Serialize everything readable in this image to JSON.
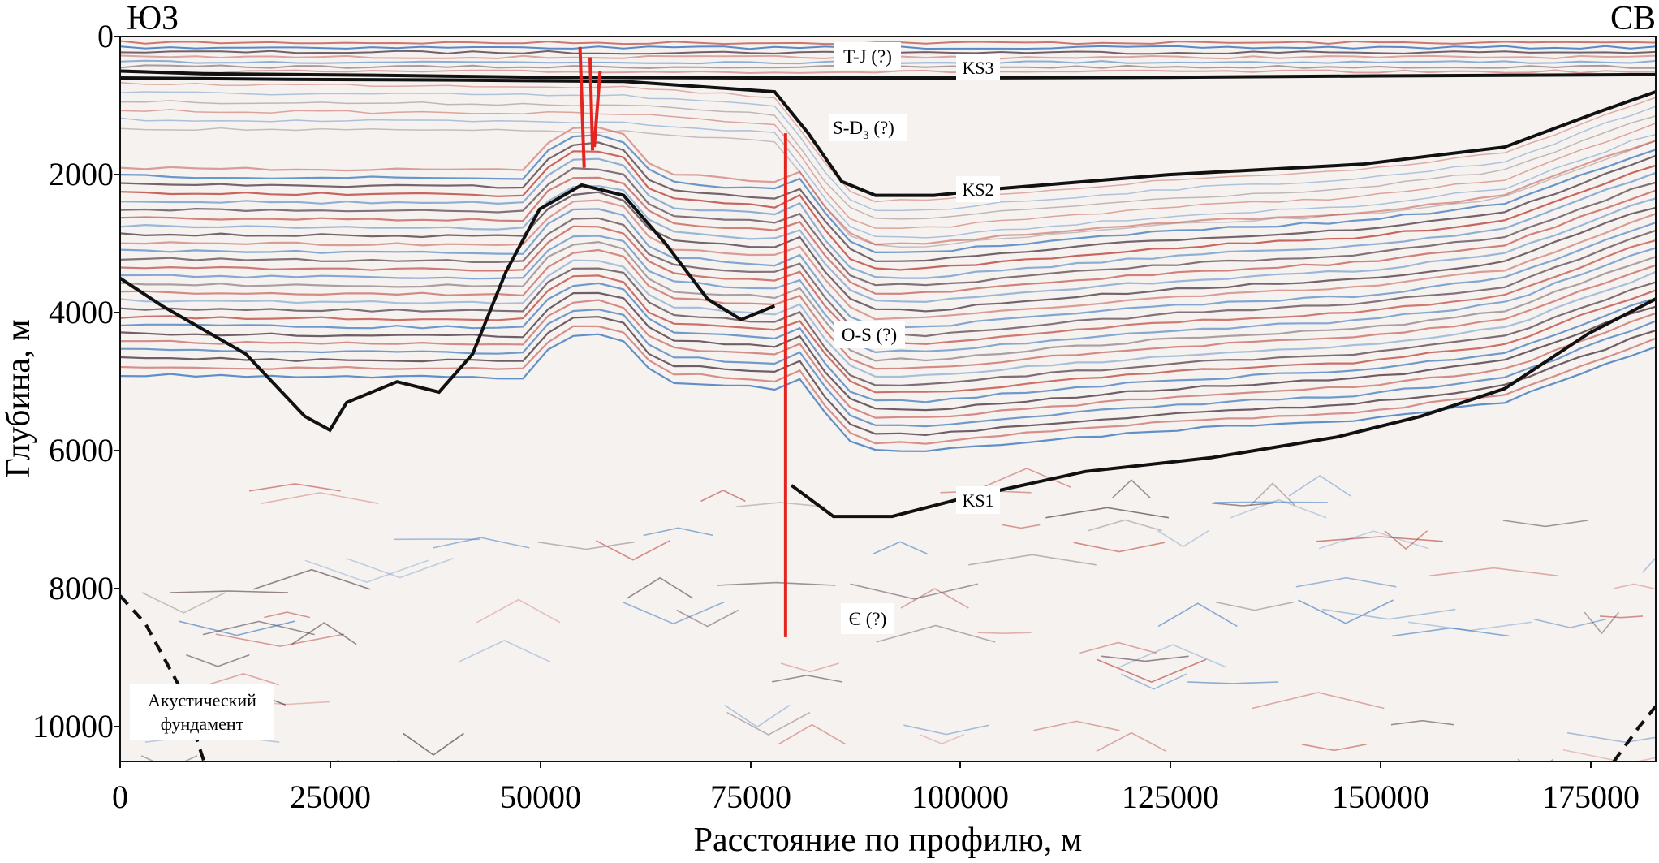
{
  "corners": {
    "left": "ЮЗ",
    "right": "СВ"
  },
  "axes": {
    "x_label": "Расстояние по профилю, м",
    "y_label": "Глубина, м",
    "x_range": [
      0,
      183000
    ],
    "y_range": [
      0,
      10500
    ],
    "x_ticks": [
      "0",
      "25000",
      "50000",
      "75000",
      "100000",
      "125000",
      "150000",
      "175000"
    ],
    "y_ticks": [
      "0",
      "2000",
      "4000",
      "6000",
      "8000",
      "10000"
    ]
  },
  "horizon_labels": {
    "tj": "T-J (?)",
    "ks3": "KS3",
    "sd_main": "S-D",
    "sd_sub": "3",
    "sd_suffix": " (?)",
    "ks2": "KS2",
    "os": "O-S (?)",
    "ks1": "KS1",
    "cambrian": "Є (?)"
  },
  "basement_label": {
    "line1": "Акустический",
    "line2": "фундамент"
  },
  "colors": {
    "horizon": "#111111",
    "fault": "#e52420",
    "reflector_red": "#b5322a",
    "reflector_blue": "#2f6fb8",
    "reflector_dark": "#3a2430"
  },
  "horizons": {
    "ks3": [
      [
        0,
        500
      ],
      [
        10000,
        540
      ],
      [
        30000,
        560
      ],
      [
        50000,
        590
      ],
      [
        75000,
        600
      ],
      [
        100000,
        600
      ],
      [
        125000,
        590
      ],
      [
        150000,
        570
      ],
      [
        183000,
        550
      ]
    ],
    "ks2": [
      [
        0,
        600
      ],
      [
        20000,
        620
      ],
      [
        40000,
        630
      ],
      [
        60000,
        650
      ],
      [
        78000,
        800
      ],
      [
        82000,
        1400
      ],
      [
        86000,
        2100
      ],
      [
        90000,
        2300
      ],
      [
        97000,
        2300
      ],
      [
        105000,
        2200
      ],
      [
        125000,
        2000
      ],
      [
        148000,
        1850
      ],
      [
        165000,
        1600
      ],
      [
        176000,
        1100
      ],
      [
        183000,
        800
      ]
    ],
    "ks1_left": [
      [
        0,
        3500
      ],
      [
        5000,
        3900
      ],
      [
        15000,
        4600
      ],
      [
        22000,
        5500
      ],
      [
        25000,
        5700
      ],
      [
        27000,
        5300
      ],
      [
        33000,
        5000
      ],
      [
        38000,
        5150
      ],
      [
        42000,
        4600
      ],
      [
        46000,
        3400
      ],
      [
        50000,
        2500
      ],
      [
        55000,
        2150
      ],
      [
        60000,
        2300
      ],
      [
        65000,
        3000
      ],
      [
        70000,
        3800
      ],
      [
        74000,
        4100
      ],
      [
        78000,
        3900
      ]
    ],
    "ks1_right": [
      [
        80000,
        6500
      ],
      [
        85000,
        6950
      ],
      [
        92000,
        6950
      ],
      [
        100000,
        6700
      ],
      [
        115000,
        6300
      ],
      [
        130000,
        6100
      ],
      [
        145000,
        5800
      ],
      [
        155000,
        5500
      ],
      [
        165000,
        5100
      ],
      [
        175000,
        4300
      ],
      [
        183000,
        3800
      ]
    ],
    "basement_left": [
      [
        0,
        8100
      ],
      [
        3000,
        8500
      ],
      [
        7000,
        9400
      ],
      [
        10000,
        10500
      ]
    ],
    "basement_right": [
      [
        178000,
        10500
      ],
      [
        181000,
        10000
      ],
      [
        183000,
        9700
      ]
    ]
  },
  "faults": [
    [
      [
        54800,
        150
      ],
      [
        55300,
        1900
      ]
    ],
    [
      [
        56000,
        300
      ],
      [
        56300,
        1650
      ]
    ],
    [
      [
        57200,
        500
      ],
      [
        56500,
        1600
      ]
    ],
    [
      [
        79300,
        1400
      ],
      [
        79300,
        8700
      ]
    ]
  ]
}
